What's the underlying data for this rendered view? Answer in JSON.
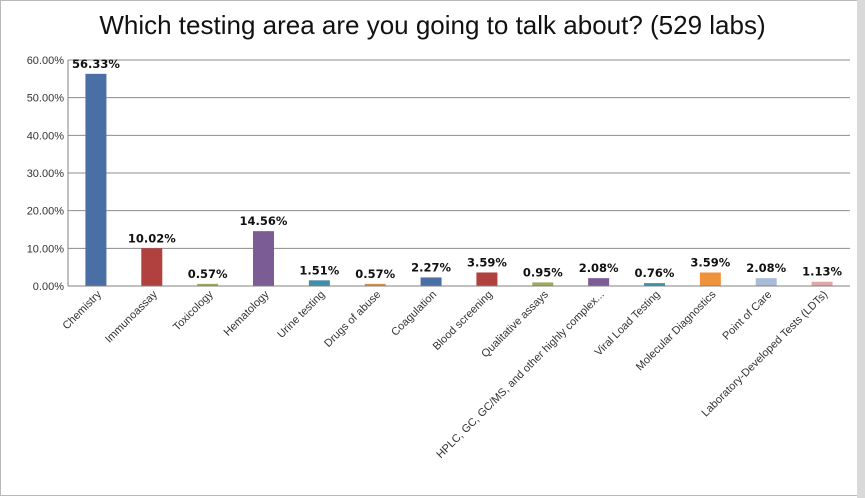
{
  "chart_data": {
    "type": "bar",
    "title": "Which testing area are you going to talk about? (529 labs)",
    "xlabel": "",
    "ylabel": "",
    "ylim": [
      0,
      60
    ],
    "y_ticks": [
      "0.00%",
      "10.00%",
      "20.00%",
      "30.00%",
      "40.00%",
      "50.00%",
      "60.00%"
    ],
    "grid": true,
    "legend": "none",
    "categories": [
      "Chemistry",
      "Immunoassay",
      "Toxicology",
      "Hematology",
      "Urine testing",
      "Drugs of abuse",
      "Coagulation",
      "Blood screening",
      "Qualitative assays",
      "HPLC, GC, GC/MS, and other highly complex...",
      "Viral Load Testing",
      "Molecular Diagnostics",
      "Point of Care",
      "Laboratory-Developed Tests (LDTs)"
    ],
    "values": [
      56.33,
      10.02,
      0.57,
      14.56,
      1.51,
      0.57,
      2.27,
      3.59,
      0.95,
      2.08,
      0.76,
      3.59,
      2.08,
      1.13
    ],
    "data_labels": [
      "56.33%",
      "10.02%",
      "0.57%",
      "14.56%",
      "1.51%",
      "0.57%",
      "2.27%",
      "3.59%",
      "0.95%",
      "2.08%",
      "0.76%",
      "3.59%",
      "2.08%",
      "1.13%"
    ],
    "colors": [
      "#4a6fa5",
      "#b0413e",
      "#9aab5a",
      "#7b5c94",
      "#3f8fa8",
      "#d38f4a",
      "#4a6fa5",
      "#b0413e",
      "#9aab5a",
      "#7b5c94",
      "#3f8fa8",
      "#f0923b",
      "#a9bbd8",
      "#e3a6a6"
    ]
  }
}
